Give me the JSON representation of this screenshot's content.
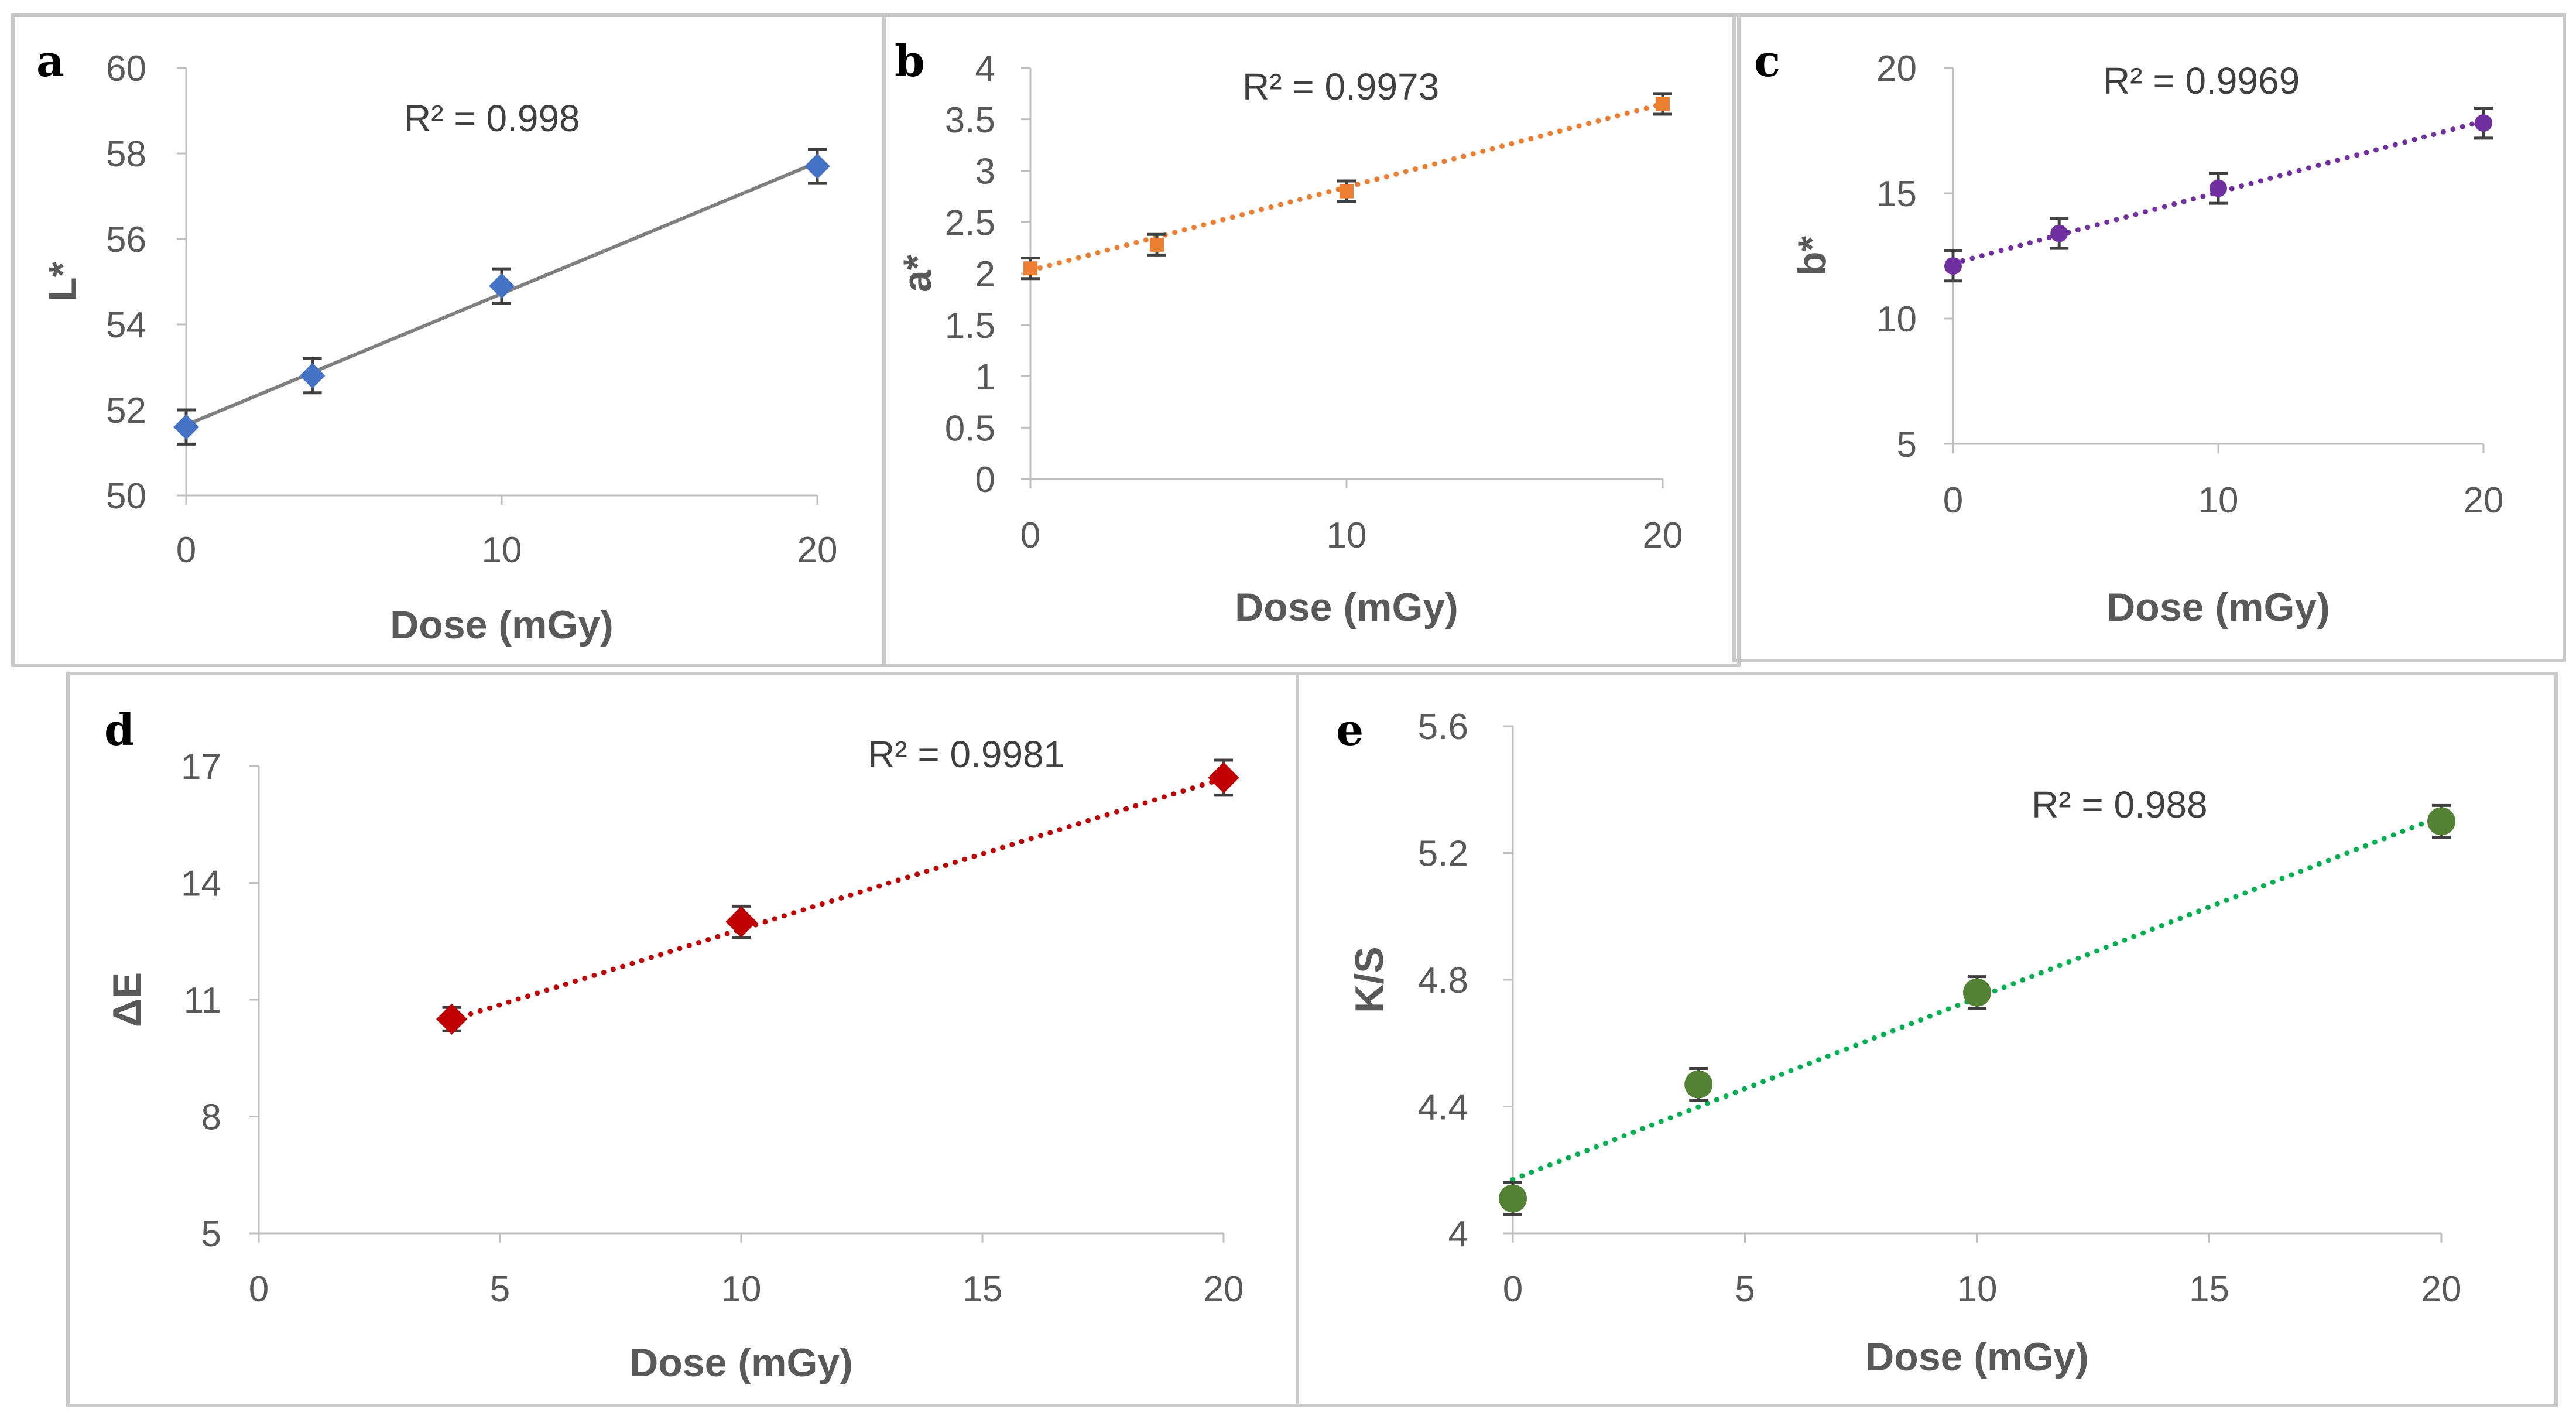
{
  "chart_data": [
    {
      "panel": "a",
      "type": "scatter",
      "marker": "diamond",
      "color": "#4472c4",
      "trendline": {
        "style": "solid",
        "color": "#7f7f7f",
        "slope": 0.307,
        "intercept": 51.65
      },
      "x": [
        0,
        4,
        10,
        20
      ],
      "y": [
        51.6,
        52.8,
        54.9,
        57.7
      ],
      "error": [
        0.4,
        0.4,
        0.4,
        0.4
      ],
      "xlabel": "Dose (mGy)",
      "ylabel": "L*",
      "xlim": [
        0,
        20
      ],
      "ylim": [
        50,
        60
      ],
      "xticks": [
        "0",
        "10",
        "20"
      ],
      "yticks": [
        "50",
        "52",
        "54",
        "56",
        "58",
        "60"
      ],
      "r2": "R² = 0.998"
    },
    {
      "panel": "b",
      "type": "scatter",
      "marker": "square",
      "color": "#ed7d31",
      "trendline": {
        "style": "dotted",
        "color": "#ed7d31",
        "slope": 0.081,
        "intercept": 2.03
      },
      "x": [
        0,
        4,
        10,
        20
      ],
      "y": [
        2.05,
        2.28,
        2.8,
        3.65
      ],
      "error": [
        0.1,
        0.1,
        0.1,
        0.1
      ],
      "xlabel": "Dose (mGy)",
      "ylabel": "a*",
      "xlim": [
        0,
        20
      ],
      "ylim": [
        0,
        4
      ],
      "xticks": [
        "0",
        "10",
        "20"
      ],
      "yticks": [
        "0",
        "0.5",
        "1",
        "1.5",
        "2",
        "2.5",
        "3",
        "3.5",
        "4"
      ],
      "r2": "R² = 0.9973"
    },
    {
      "panel": "c",
      "type": "scatter",
      "marker": "circle",
      "color": "#7030a0",
      "trendline": {
        "style": "dotted",
        "color": "#7030a0",
        "slope": 0.284,
        "intercept": 12.2
      },
      "x": [
        0,
        4,
        10,
        20
      ],
      "y": [
        12.1,
        13.4,
        15.2,
        17.8
      ],
      "error": [
        0.6,
        0.6,
        0.6,
        0.6
      ],
      "xlabel": "Dose (mGy)",
      "ylabel": "b*",
      "xlim": [
        0,
        20
      ],
      "ylim": [
        5,
        20
      ],
      "xticks": [
        "0",
        "10",
        "20"
      ],
      "yticks": [
        "5",
        "10",
        "15",
        "20"
      ],
      "r2": "R² = 0.9969"
    },
    {
      "panel": "d",
      "type": "scatter",
      "marker": "diamond",
      "color": "#c00000",
      "trendline": {
        "style": "dotted",
        "color": "#c00000",
        "slope": 0.3877,
        "intercept": 8.93
      },
      "x": [
        4,
        10,
        20
      ],
      "y": [
        10.5,
        13.0,
        16.7
      ],
      "error": [
        0.3,
        0.4,
        0.45
      ],
      "xlabel": "Dose (mGy)",
      "ylabel": "ΔE",
      "xlim": [
        0,
        20
      ],
      "ylim": [
        5,
        17
      ],
      "xticks": [
        "0",
        "5",
        "10",
        "15",
        "20"
      ],
      "yticks": [
        "5",
        "8",
        "11",
        "14",
        "17"
      ],
      "r2": "R² = 0.9981"
    },
    {
      "panel": "e",
      "type": "scatter",
      "marker": "circle",
      "color": "#548235",
      "trendline": {
        "style": "dotted",
        "color": "#00b050",
        "slope": 0.0573,
        "intercept": 4.17
      },
      "x": [
        0,
        4,
        10,
        20
      ],
      "y": [
        4.11,
        4.47,
        4.76,
        5.3
      ],
      "error": [
        0.05,
        0.05,
        0.05,
        0.05
      ],
      "xlabel": "Dose (mGy)",
      "ylabel": "K/S",
      "xlim": [
        0,
        20
      ],
      "ylim": [
        4,
        5.6
      ],
      "xticks": [
        "0",
        "5",
        "10",
        "15",
        "20"
      ],
      "yticks": [
        "4",
        "4.4",
        "4.8",
        "5.2",
        "5.6"
      ],
      "r2": "R² = 0.988"
    }
  ]
}
